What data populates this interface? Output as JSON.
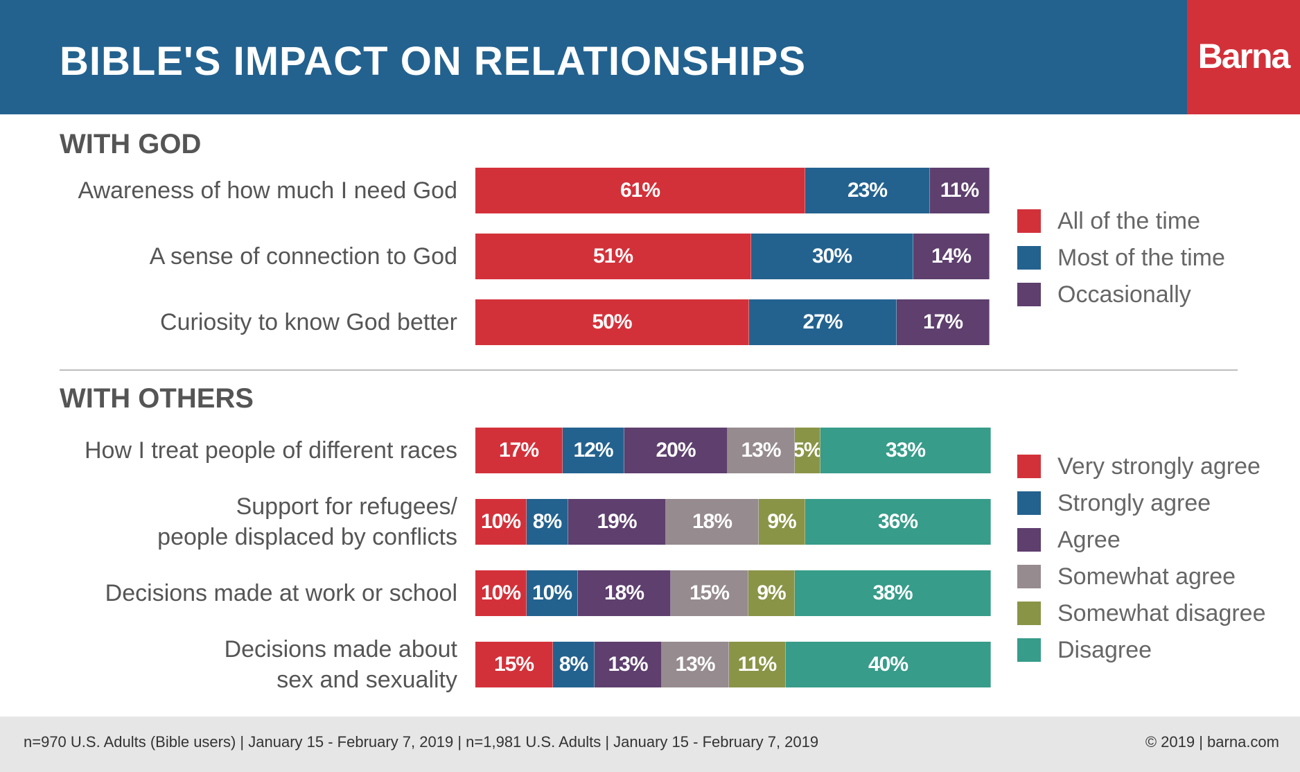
{
  "header": {
    "title": "BIBLE'S IMPACT ON RELATIONSHIPS",
    "logo": "Barna",
    "bg_color": "#23628f",
    "logo_bg_color": "#d3313a"
  },
  "footer": {
    "left": "n=970 U.S. Adults (Bible users) | January 15 - February 7, 2019 | n=1,981 U.S. Adults | January 15 - February 7, 2019",
    "right": "© 2019 | barna.com"
  },
  "chart_data": [
    {
      "type": "bar",
      "stacked": true,
      "orientation": "horizontal",
      "title": "WITH GOD",
      "categories": [
        [
          "Awareness of how much I need God"
        ],
        [
          "A sense of connection to God"
        ],
        [
          "Curiosity to know God better"
        ]
      ],
      "series": [
        {
          "name": "All of the time",
          "color": "#d3313a",
          "values": [
            61,
            51,
            50
          ]
        },
        {
          "name": "Most of the time",
          "color": "#23628f",
          "values": [
            23,
            30,
            27
          ]
        },
        {
          "name": "Occasionally",
          "color": "#5e3f6e",
          "values": [
            11,
            14,
            17
          ]
        }
      ],
      "legend_position": "right"
    },
    {
      "type": "bar",
      "stacked": true,
      "orientation": "horizontal",
      "title": "WITH OTHERS",
      "categories": [
        [
          "How I treat people of different races"
        ],
        [
          "Support for refugees/",
          "people displaced by conflicts"
        ],
        [
          "Decisions made at work or school"
        ],
        [
          "Decisions made about",
          "sex and sexuality"
        ]
      ],
      "series": [
        {
          "name": "Very strongly agree",
          "color": "#d3313a",
          "values": [
            17,
            10,
            10,
            15
          ]
        },
        {
          "name": "Strongly agree",
          "color": "#23628f",
          "values": [
            12,
            8,
            10,
            8
          ]
        },
        {
          "name": "Agree",
          "color": "#5e3f6e",
          "values": [
            20,
            19,
            18,
            13
          ]
        },
        {
          "name": "Somewhat agree",
          "color": "#968b8f",
          "values": [
            13,
            18,
            15,
            13
          ]
        },
        {
          "name": "Somewhat disagree",
          "color": "#8a9447",
          "values": [
            5,
            9,
            9,
            11
          ]
        },
        {
          "name": "Disagree",
          "color": "#379c8a",
          "values": [
            33,
            36,
            38,
            40
          ]
        }
      ],
      "legend_position": "right"
    }
  ]
}
